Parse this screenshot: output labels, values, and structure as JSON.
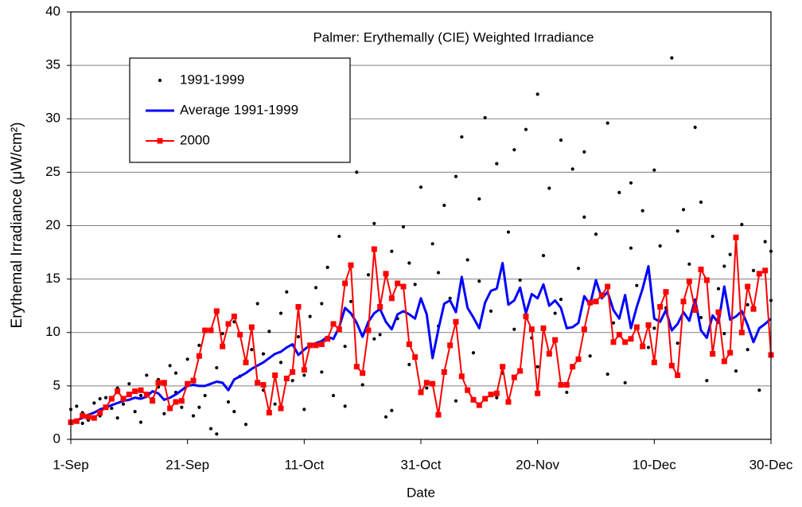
{
  "chart_data": {
    "type": "scatter",
    "title": "Palmer: Erythemally (CIE) Weighted Irradiance",
    "x_label": "Date",
    "y_label": "Erythemal Irradiance (μW/cm²)",
    "xlim": [
      0,
      120
    ],
    "xticks": [
      {
        "value": 0,
        "label": "1-Sep"
      },
      {
        "value": 20,
        "label": "21-Sep"
      },
      {
        "value": 40,
        "label": "11-Oct"
      },
      {
        "value": 60,
        "label": "31-Oct"
      },
      {
        "value": 80,
        "label": "20-Nov"
      },
      {
        "value": 100,
        "label": "10-Dec"
      },
      {
        "value": 120,
        "label": "30-Dec"
      }
    ],
    "ylim": [
      0,
      40
    ],
    "yticks": [
      0,
      5,
      10,
      15,
      20,
      25,
      30,
      35,
      40
    ],
    "grid": true,
    "legend": "upper-left",
    "series": [
      {
        "name": "1991-1999",
        "color": "#000000",
        "mode": "markers",
        "x": [
          0,
          1,
          2,
          3,
          4,
          5,
          6,
          7,
          8,
          9,
          10,
          11,
          12,
          13,
          14,
          15,
          16,
          17,
          18,
          19,
          20,
          21,
          22,
          23,
          24,
          25,
          26,
          27,
          28,
          29,
          30,
          31,
          32,
          33,
          34,
          35,
          36,
          37,
          38,
          39,
          40,
          41,
          42,
          43,
          44,
          45,
          46,
          47,
          48,
          49,
          50,
          51,
          52,
          53,
          54,
          55,
          56,
          57,
          58,
          59,
          60,
          61,
          62,
          63,
          64,
          65,
          66,
          67,
          68,
          69,
          70,
          71,
          72,
          73,
          74,
          75,
          76,
          77,
          78,
          79,
          80,
          81,
          82,
          83,
          84,
          85,
          86,
          87,
          88,
          89,
          90,
          91,
          92,
          93,
          94,
          95,
          96,
          97,
          98,
          99,
          100,
          101,
          102,
          103,
          104,
          105,
          106,
          107,
          108,
          109,
          110,
          111,
          112,
          113,
          114,
          115,
          116,
          117,
          118,
          119,
          120,
          2,
          5,
          8,
          12,
          15,
          18,
          22,
          25,
          28,
          33,
          36,
          40,
          43,
          47,
          52,
          55,
          58,
          63,
          66,
          70,
          73,
          76,
          80,
          84,
          88,
          92,
          96,
          100,
          104,
          108,
          112,
          116,
          120
        ],
        "values": [
          2.8,
          3.1,
          2.5,
          1.8,
          3.4,
          2.2,
          3.9,
          2.9,
          4.8,
          3.3,
          5.2,
          2.6,
          4.1,
          6.0,
          3.8,
          5.6,
          2.4,
          6.9,
          4.4,
          3.0,
          7.5,
          2.2,
          8.8,
          4.1,
          1.0,
          6.7,
          9.9,
          3.5,
          11.0,
          5.9,
          1.4,
          8.4,
          12.7,
          4.6,
          10.1,
          3.3,
          7.2,
          13.8,
          5.5,
          9.6,
          2.8,
          11.5,
          14.2,
          6.3,
          16.1,
          4.1,
          19.0,
          8.7,
          12.9,
          25.0,
          5.1,
          15.4,
          20.2,
          9.8,
          2.1,
          17.6,
          11.3,
          19.9,
          7.0,
          14.5,
          23.6,
          4.8,
          18.3,
          10.6,
          21.9,
          13.2,
          3.6,
          28.3,
          16.8,
          8.1,
          22.5,
          30.1,
          12.0,
          25.8,
          6.2,
          19.4,
          27.1,
          14.9,
          29.0,
          9.5,
          32.3,
          17.2,
          23.5,
          11.8,
          28.0,
          4.4,
          25.3,
          16.0,
          20.8,
          7.8,
          19.2,
          13.6,
          29.6,
          10.9,
          23.1,
          5.3,
          17.9,
          14.4,
          21.4,
          8.6,
          25.2,
          18.1,
          12.3,
          35.7,
          9.0,
          21.5,
          16.4,
          29.2,
          11.4,
          5.5,
          19.0,
          14.1,
          9.9,
          17.3,
          6.4,
          20.1,
          12.6,
          15.8,
          4.6,
          18.5,
          13.0,
          1.5,
          3.8,
          2.0,
          1.6,
          4.9,
          6.2,
          3.0,
          0.5,
          2.6,
          8.0,
          11.8,
          6.0,
          12.7,
          3.1,
          9.4,
          2.7,
          16.5,
          15.6,
          24.6,
          14.8,
          3.9,
          10.3,
          6.8,
          13.1,
          26.9,
          6.1,
          24.0,
          10.4,
          19.5,
          22.2,
          16.2,
          8.4,
          17.6
        ]
      },
      {
        "name": "Average 1991-1999",
        "color": "#0000ff",
        "mode": "line",
        "x": [
          0,
          1,
          2,
          3,
          4,
          5,
          6,
          7,
          8,
          9,
          10,
          11,
          12,
          13,
          14,
          15,
          16,
          17,
          18,
          19,
          20,
          21,
          22,
          23,
          24,
          25,
          26,
          27,
          28,
          29,
          30,
          31,
          32,
          33,
          34,
          35,
          36,
          37,
          38,
          39,
          40,
          41,
          42,
          43,
          44,
          45,
          46,
          47,
          48,
          49,
          50,
          51,
          52,
          53,
          54,
          55,
          56,
          57,
          58,
          59,
          60,
          61,
          62,
          63,
          64,
          65,
          66,
          67,
          68,
          69,
          70,
          71,
          72,
          73,
          74,
          75,
          76,
          77,
          78,
          79,
          80,
          81,
          82,
          83,
          84,
          85,
          86,
          87,
          88,
          89,
          90,
          91,
          92,
          93,
          94,
          95,
          96,
          97,
          98,
          99,
          100,
          101,
          102,
          103,
          104,
          105,
          106,
          107,
          108,
          109,
          110,
          111,
          112,
          113,
          114,
          115,
          116,
          117,
          118,
          119,
          120
        ],
        "values": [
          1.5,
          1.8,
          2.0,
          2.3,
          2.5,
          2.8,
          3.0,
          3.2,
          3.4,
          3.6,
          3.7,
          3.9,
          3.8,
          4.0,
          4.5,
          4.3,
          3.7,
          3.9,
          4.2,
          4.6,
          5.0,
          5.1,
          5.0,
          5.0,
          5.2,
          5.4,
          5.3,
          4.6,
          5.6,
          5.9,
          6.2,
          6.6,
          6.9,
          7.2,
          7.6,
          8.0,
          8.2,
          8.6,
          8.9,
          7.9,
          8.4,
          8.8,
          9.0,
          9.2,
          9.6,
          9.4,
          10.5,
          12.3,
          11.8,
          10.9,
          9.6,
          11.0,
          11.8,
          12.2,
          11.0,
          10.3,
          11.7,
          12.0,
          11.7,
          11.3,
          13.2,
          11.7,
          7.6,
          10.3,
          12.7,
          13.0,
          11.9,
          15.2,
          12.3,
          11.4,
          10.4,
          12.8,
          13.9,
          14.1,
          16.5,
          12.6,
          13.0,
          14.2,
          11.8,
          13.6,
          13.2,
          14.5,
          12.5,
          13.0,
          12.3,
          10.4,
          10.5,
          10.9,
          13.4,
          12.6,
          14.9,
          13.2,
          13.8,
          12.1,
          11.3,
          13.5,
          10.4,
          12.4,
          14.1,
          16.2,
          11.3,
          11.0,
          12.1,
          10.2,
          10.8,
          11.9,
          11.1,
          13.1,
          10.2,
          9.5,
          11.6,
          10.9,
          14.3,
          11.2,
          11.5,
          12.0,
          10.7,
          9.1,
          10.4,
          10.8,
          11.3
        ]
      },
      {
        "name": "2000",
        "color": "#ff0000",
        "mode": "line+markers",
        "x": [
          0,
          1,
          2,
          3,
          4,
          5,
          6,
          7,
          8,
          9,
          10,
          11,
          12,
          13,
          14,
          15,
          16,
          17,
          18,
          19,
          20,
          21,
          22,
          23,
          24,
          25,
          26,
          27,
          28,
          29,
          30,
          31,
          32,
          33,
          34,
          35,
          36,
          37,
          38,
          39,
          40,
          41,
          42,
          43,
          44,
          45,
          46,
          47,
          48,
          49,
          50,
          51,
          52,
          53,
          54,
          55,
          56,
          57,
          58,
          59,
          60,
          61,
          62,
          63,
          64,
          65,
          66,
          67,
          68,
          69,
          70,
          71,
          72,
          73,
          74,
          75,
          76,
          77,
          78,
          79,
          80,
          81,
          82,
          83,
          84,
          85,
          86,
          87,
          88,
          89,
          90,
          91,
          92,
          93,
          94,
          95,
          96,
          97,
          98,
          99,
          100,
          101,
          102,
          103,
          104,
          105,
          106,
          107,
          108,
          109,
          110,
          111,
          112,
          113,
          114,
          115,
          116,
          117,
          118,
          119,
          120
        ],
        "values": [
          1.6,
          1.7,
          2.2,
          2.1,
          2.0,
          2.5,
          3.0,
          3.8,
          4.5,
          3.8,
          4.2,
          4.5,
          4.6,
          4.2,
          3.6,
          5.3,
          5.3,
          2.9,
          3.5,
          3.6,
          5.2,
          5.5,
          7.8,
          10.2,
          10.2,
          12.0,
          8.7,
          10.8,
          11.5,
          9.8,
          7.2,
          10.5,
          5.3,
          5.1,
          2.5,
          6.0,
          2.9,
          5.7,
          6.3,
          12.4,
          6.5,
          8.8,
          8.8,
          8.9,
          9.4,
          10.8,
          10.3,
          14.6,
          16.3,
          6.8,
          6.2,
          10.2,
          17.8,
          12.4,
          15.5,
          13.2,
          14.6,
          14.3,
          8.9,
          7.7,
          4.4,
          5.3,
          5.2,
          2.3,
          6.3,
          8.8,
          11.0,
          5.9,
          4.6,
          3.7,
          3.2,
          3.8,
          4.2,
          4.3,
          6.8,
          3.5,
          5.8,
          6.4,
          11.5,
          10.3,
          4.3,
          10.4,
          8.0,
          9.3,
          5.1,
          5.1,
          6.8,
          7.5,
          10.3,
          12.8,
          12.9,
          13.5,
          14.3,
          9.1,
          9.8,
          9.1,
          9.4,
          10.5,
          8.7,
          10.7,
          7.2,
          12.4,
          13.8,
          6.9,
          6.0,
          12.9,
          14.8,
          12.1,
          15.9,
          14.9,
          8.0,
          11.9,
          7.3,
          8.1,
          18.9,
          10.0,
          14.3,
          12.2,
          15.5,
          15.8,
          7.9
        ]
      }
    ]
  }
}
